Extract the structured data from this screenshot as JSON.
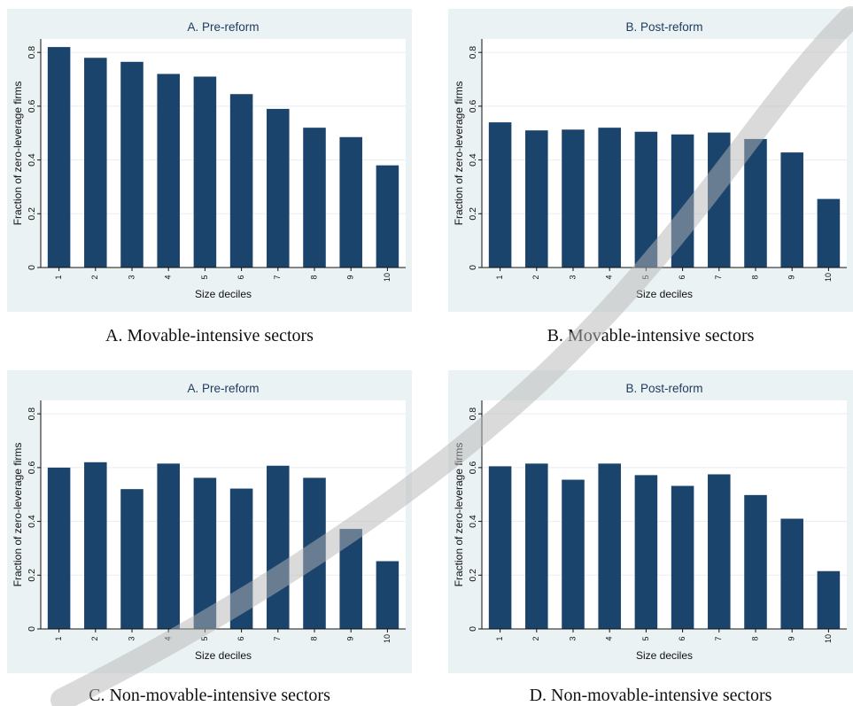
{
  "colors": {
    "bar": "#1b446c",
    "panel_bg": "#eaf2f3",
    "plot_bg": "#ffffff",
    "grid": "#e8eef0"
  },
  "captions": [
    "A. Movable-intensive sectors",
    "B. Movable-intensive sectors",
    "C. Non-movable-intensive sectors",
    "D. Non-movable-intensive sectors"
  ],
  "chart_data": [
    {
      "type": "bar",
      "title": "A. Pre-reform",
      "xlabel": "Size deciles",
      "ylabel": "Fraction of zero-leverage firms",
      "categories": [
        "1",
        "2",
        "3",
        "4",
        "5",
        "6",
        "7",
        "8",
        "9",
        "10"
      ],
      "values": [
        0.82,
        0.78,
        0.765,
        0.72,
        0.71,
        0.645,
        0.59,
        0.52,
        0.485,
        0.38
      ],
      "ylim": [
        0,
        0.85
      ],
      "yticks": [
        "0",
        "0.2",
        "0.4",
        "0.6",
        "0.8"
      ],
      "grid": true
    },
    {
      "type": "bar",
      "title": "B. Post-reform",
      "xlabel": "Size deciles",
      "ylabel": "Fraction of zero-leverage firms",
      "categories": [
        "1",
        "2",
        "3",
        "4",
        "5",
        "6",
        "7",
        "8",
        "9",
        "10"
      ],
      "values": [
        0.54,
        0.51,
        0.513,
        0.52,
        0.505,
        0.495,
        0.502,
        0.478,
        0.428,
        0.255
      ],
      "ylim": [
        0,
        0.85
      ],
      "yticks": [
        "0",
        "0.2",
        "0.4",
        "0.6",
        "0.8"
      ],
      "grid": true
    },
    {
      "type": "bar",
      "title": "A. Pre-reform",
      "xlabel": "Size deciles",
      "ylabel": "Fraction of zero-leverage firms",
      "categories": [
        "1",
        "2",
        "3",
        "4",
        "5",
        "6",
        "7",
        "8",
        "9",
        "10"
      ],
      "values": [
        0.6,
        0.62,
        0.52,
        0.615,
        0.562,
        0.522,
        0.607,
        0.562,
        0.372,
        0.252
      ],
      "ylim": [
        0,
        0.85
      ],
      "yticks": [
        "0",
        "0.2",
        "0.4",
        "0.6",
        "0.8"
      ],
      "grid": true
    },
    {
      "type": "bar",
      "title": "B. Post-reform",
      "xlabel": "Size deciles",
      "ylabel": "Fraction of zero-leverage firms",
      "categories": [
        "1",
        "2",
        "3",
        "4",
        "5",
        "6",
        "7",
        "8",
        "9",
        "10"
      ],
      "values": [
        0.605,
        0.615,
        0.555,
        0.615,
        0.572,
        0.532,
        0.575,
        0.498,
        0.41,
        0.215
      ],
      "ylim": [
        0,
        0.85
      ],
      "yticks": [
        "0",
        "0.2",
        "0.4",
        "0.6",
        "0.8"
      ],
      "grid": true
    }
  ]
}
